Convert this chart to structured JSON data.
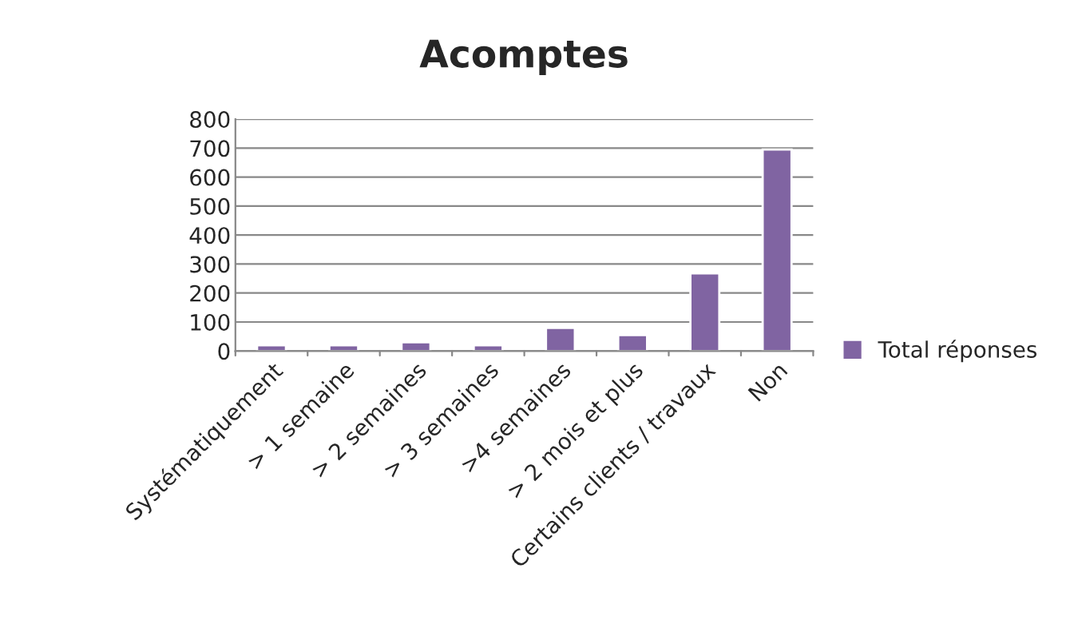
{
  "chart_data": {
    "type": "bar",
    "title": "Acomptes",
    "categories": [
      "Systématiquement",
      "> 1 semaine",
      "> 2 semaines",
      "> 3 semaines",
      ">4 semaines",
      "> 2 mois et plus",
      "Certains clients / travaux",
      "Non"
    ],
    "series": [
      {
        "name": "Total réponses",
        "color": "#8064a2",
        "values": [
          20,
          20,
          30,
          20,
          80,
          55,
          268,
          695
        ]
      }
    ],
    "ylim": [
      0,
      800
    ],
    "yticks": [
      0,
      100,
      200,
      300,
      400,
      500,
      600,
      700,
      800
    ],
    "grid": "y",
    "legend": "right"
  }
}
